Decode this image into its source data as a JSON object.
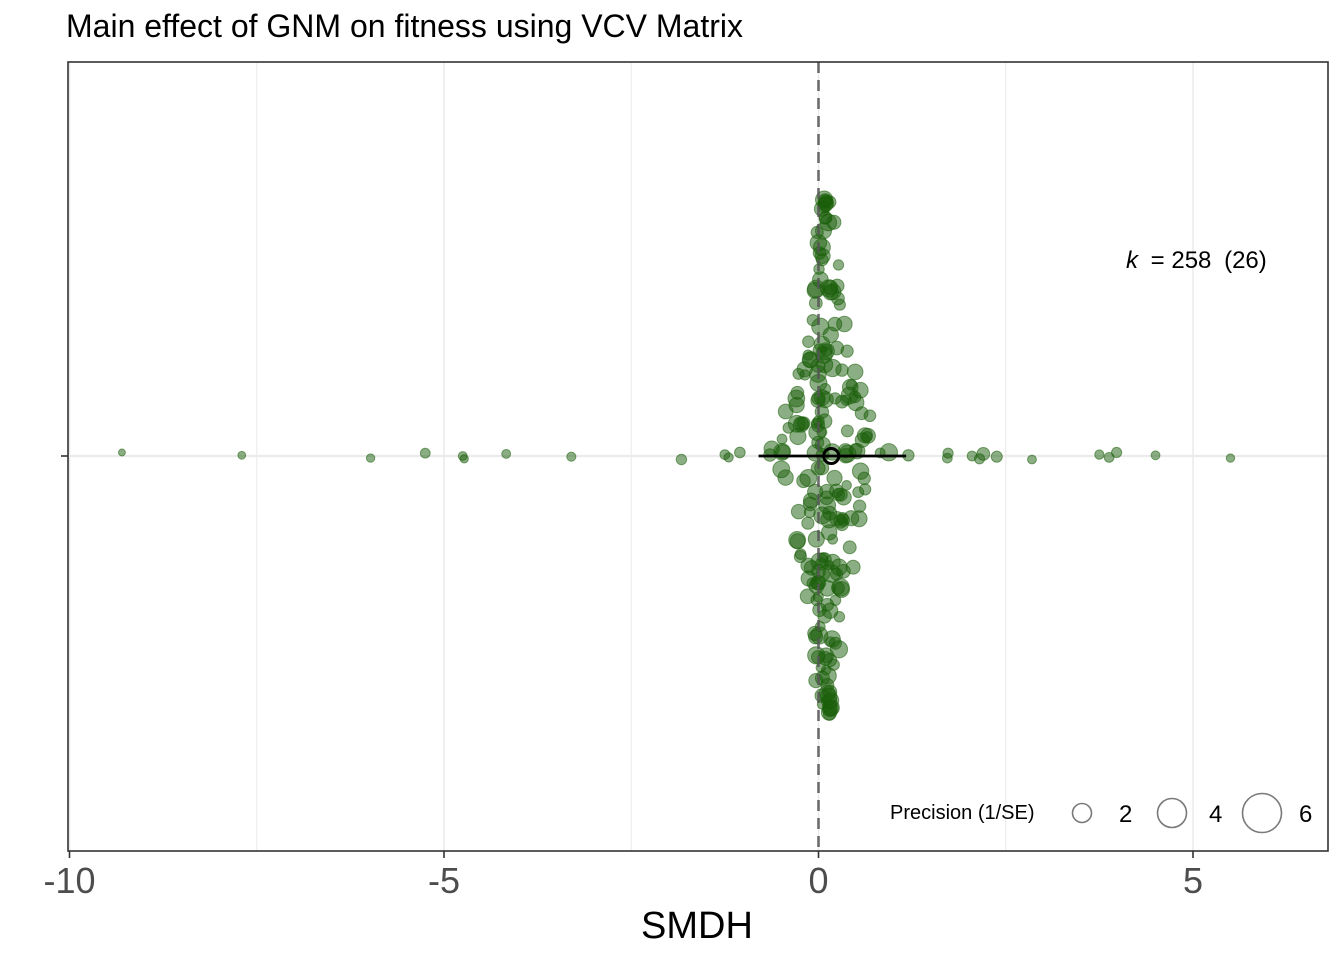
{
  "chart_data": {
    "type": "scatter",
    "title": "Main effect of GNM on fitness using VCV Matrix",
    "xlabel": "SMDH",
    "ylabel": "",
    "xlim": [
      -10,
      6.8
    ],
    "x_ticks": [
      -10,
      -5,
      0,
      5
    ],
    "x_tick_labels": [
      "-10",
      "-5",
      "0",
      "5"
    ],
    "reference_line_x": 0,
    "grid": true,
    "point_color": "#1a5e0a",
    "summary": {
      "estimate": 0.17,
      "ci_lower": -0.8,
      "ci_upper": 1.17
    },
    "annotation": {
      "k_symbol": "k",
      "k_value": "= 258",
      "k_group": "(26)"
    },
    "legend": {
      "title": "Precision (1/SE)",
      "position": "bottom-right",
      "entries": [
        {
          "label": "2",
          "value": 2
        },
        {
          "label": "4",
          "value": 4
        },
        {
          "label": "6",
          "value": 6
        }
      ]
    },
    "outlier_points": [
      {
        "x": -9.3,
        "precision": 1.1
      },
      {
        "x": -7.7,
        "precision": 1.4
      },
      {
        "x": -5.98,
        "precision": 1.6
      },
      {
        "x": -5.25,
        "precision": 2.2
      },
      {
        "x": -4.75,
        "precision": 1.8
      },
      {
        "x": -4.73,
        "precision": 1.6
      },
      {
        "x": -4.17,
        "precision": 1.8
      },
      {
        "x": -3.3,
        "precision": 1.9
      },
      {
        "x": -1.83,
        "precision": 2.5
      },
      {
        "x": -1.25,
        "precision": 2.2
      },
      {
        "x": -1.2,
        "precision": 2.0
      },
      {
        "x": -1.05,
        "precision": 2.6
      },
      {
        "x": 1.2,
        "precision": 3.0
      },
      {
        "x": 1.72,
        "precision": 2.2
      },
      {
        "x": 1.73,
        "precision": 2.4
      },
      {
        "x": 2.05,
        "precision": 2.2
      },
      {
        "x": 2.15,
        "precision": 2.4
      },
      {
        "x": 2.2,
        "precision": 3.8
      },
      {
        "x": 2.38,
        "precision": 2.8
      },
      {
        "x": 2.85,
        "precision": 1.8
      },
      {
        "x": 3.75,
        "precision": 2.0
      },
      {
        "x": 3.88,
        "precision": 2.2
      },
      {
        "x": 3.98,
        "precision": 2.4
      },
      {
        "x": 4.5,
        "precision": 1.8
      },
      {
        "x": 5.5,
        "precision": 1.6
      }
    ]
  }
}
